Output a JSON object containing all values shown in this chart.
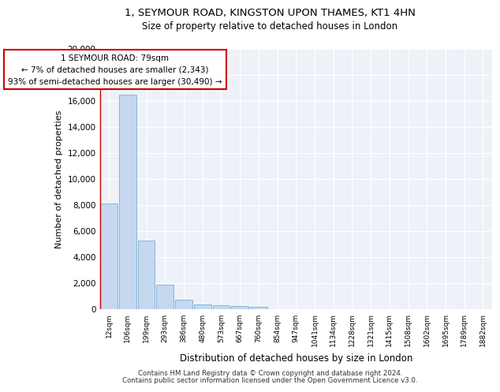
{
  "title1": "1, SEYMOUR ROAD, KINGSTON UPON THAMES, KT1 4HN",
  "title2": "Size of property relative to detached houses in London",
  "xlabel": "Distribution of detached houses by size in London",
  "ylabel": "Number of detached properties",
  "bar_color": "#c5d8f0",
  "bar_edge_color": "#7aafd4",
  "annotation_box_color": "#cc0000",
  "annotation_line_color": "#cc0000",
  "annotation_text_line1": "1 SEYMOUR ROAD: 79sqm",
  "annotation_text_line2": "← 7% of detached houses are smaller (2,343)",
  "annotation_text_line3": "93% of semi-detached houses are larger (30,490) →",
  "categories": [
    "12sqm",
    "106sqm",
    "199sqm",
    "293sqm",
    "386sqm",
    "480sqm",
    "573sqm",
    "667sqm",
    "760sqm",
    "854sqm",
    "947sqm",
    "1041sqm",
    "1134sqm",
    "1228sqm",
    "1321sqm",
    "1415sqm",
    "1508sqm",
    "1602sqm",
    "1695sqm",
    "1789sqm",
    "1882sqm"
  ],
  "values": [
    8100,
    16500,
    5300,
    1850,
    750,
    380,
    290,
    240,
    200,
    0,
    0,
    0,
    0,
    0,
    0,
    0,
    0,
    0,
    0,
    0,
    0
  ],
  "ylim": [
    0,
    20000
  ],
  "yticks": [
    0,
    2000,
    4000,
    6000,
    8000,
    10000,
    12000,
    14000,
    16000,
    18000,
    20000
  ],
  "background_color": "#eef2f8",
  "grid_color": "#ffffff",
  "footer_line1": "Contains HM Land Registry data © Crown copyright and database right 2024.",
  "footer_line2": "Contains public sector information licensed under the Open Government Licence v3.0."
}
